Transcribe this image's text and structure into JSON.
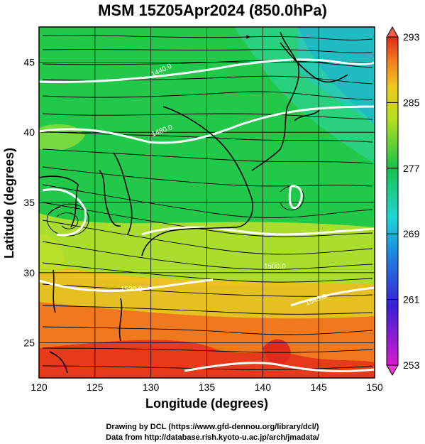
{
  "title": "MSM 15Z05Apr2024 (850.0hPa)",
  "xlabel": "Longitude (degrees)",
  "ylabel": "Latitude  (degrees)",
  "credits": {
    "line1": "Drawing by DCL (https://www.gfd-dennou.org/library/dcl/)",
    "line2": "Data from http://database.rish.kyoto-u.ac.jp/arch/jmadata/"
  },
  "map": {
    "lon_range": [
      120,
      150
    ],
    "lat_range": [
      22.5,
      47.5
    ],
    "lon_ticks": [
      "120",
      "125",
      "130",
      "135",
      "140",
      "145",
      "150"
    ],
    "lat_ticks": [
      "25",
      "30",
      "35",
      "40",
      "45"
    ],
    "grid": true,
    "fill_variable": "temperature (K)",
    "overlay": "streamlines of wind",
    "contour_color": "#ffffff",
    "contour_labels": [
      "1440.0",
      "1480.0",
      "1500.0",
      "1520.0",
      "1540.0"
    ]
  },
  "colorbar": {
    "range": [
      253,
      293
    ],
    "labels": [
      "293",
      "285",
      "277",
      "269",
      "261",
      "253"
    ],
    "colors": [
      "#e53b8a",
      "#1a2fd6",
      "#1fc8d6",
      "#16c24a",
      "#e8e81e",
      "#f07a1e",
      "#e02a1a"
    ]
  }
}
